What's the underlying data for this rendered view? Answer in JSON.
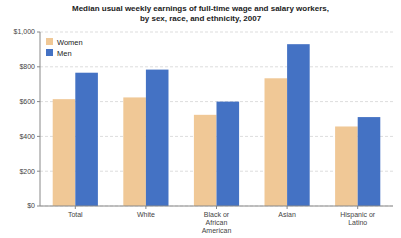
{
  "chart_data": {
    "type": "bar",
    "title": "Median usual weekly earnings of full-time wage and salary workers,\nby sex, race, and ethnicity, 2007",
    "categories": [
      "Total",
      "White",
      "Black or\nAfrican\nAmerican",
      "Asian",
      "Hispanic or\nLatino"
    ],
    "series": [
      {
        "name": "Women",
        "color": "#F0C896",
        "values": [
          614,
          624,
          524,
          734,
          457
        ]
      },
      {
        "name": "Men",
        "color": "#4472C4",
        "values": [
          766,
          784,
          600,
          930,
          511
        ]
      }
    ],
    "ylim": [
      0,
      1000
    ],
    "yticks": [
      {
        "value": 0,
        "label": "$0"
      },
      {
        "value": 200,
        "label": "$200"
      },
      {
        "value": 400,
        "label": "$400"
      },
      {
        "value": 600,
        "label": "$600"
      },
      {
        "value": 800,
        "label": "$800"
      },
      {
        "value": 1000,
        "label": "$1,000"
      }
    ],
    "grid": true,
    "legend": "upper left"
  }
}
